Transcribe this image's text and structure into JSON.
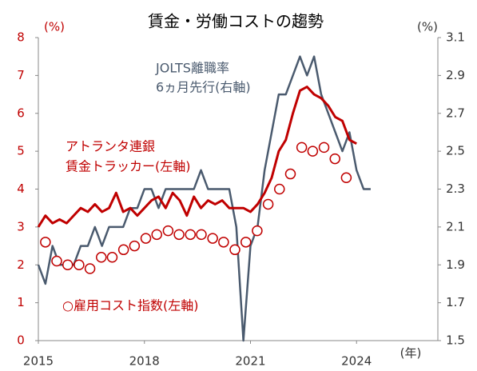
{
  "chart_data": {
    "type": "line",
    "title": "賃金・労働コストの趨勢",
    "y_unit": "(%)",
    "y2_unit": "(%)",
    "x_unit": "(年)",
    "annotations": [
      {
        "text": "JOLTS離職率",
        "color": "#4a5a6e"
      },
      {
        "text": "6ヵ月先行(右軸)",
        "color": "#4a5a6e"
      },
      {
        "text": "アトランタ連銀",
        "color": "#c00000"
      },
      {
        "text": "賃金トラッカー(左軸)",
        "color": "#c00000"
      },
      {
        "text": "○雇用コスト指数(左軸)",
        "color": "#c00000"
      }
    ],
    "xlim": [
      2015,
      2026.3
    ],
    "xticks": [
      2015,
      2018,
      2021,
      2024
    ],
    "ylim": [
      0,
      8
    ],
    "yticks": [
      0,
      1,
      2,
      3,
      4,
      5,
      6,
      7,
      8
    ],
    "y2lim": [
      1.5,
      3.1
    ],
    "y2ticks": [
      1.5,
      1.7,
      1.9,
      2.1,
      2.3,
      2.5,
      2.7,
      2.9,
      3.1
    ],
    "grid": false,
    "series": [
      {
        "color": "#c00000",
        "style": "line",
        "axis": "y",
        "x": [
          2015,
          2015.2,
          2015.4,
          2015.6,
          2015.8,
          2016,
          2016.2,
          2016.4,
          2016.6,
          2016.8,
          2017,
          2017.2,
          2017.4,
          2017.6,
          2017.8,
          2018,
          2018.2,
          2018.4,
          2018.6,
          2018.8,
          2019,
          2019.2,
          2019.4,
          2019.6,
          2019.8,
          2020,
          2020.2,
          2020.4,
          2020.6,
          2020.8,
          2021,
          2021.2,
          2021.4,
          2021.6,
          2021.8,
          2022,
          2022.2,
          2022.4,
          2022.6,
          2022.8,
          2023,
          2023.2,
          2023.4,
          2023.6,
          2023.8,
          2024
        ],
        "values": [
          3.0,
          3.3,
          3.1,
          3.2,
          3.1,
          3.3,
          3.5,
          3.4,
          3.6,
          3.4,
          3.5,
          3.9,
          3.4,
          3.5,
          3.3,
          3.5,
          3.7,
          3.8,
          3.5,
          3.9,
          3.7,
          3.3,
          3.8,
          3.5,
          3.7,
          3.6,
          3.7,
          3.5,
          3.5,
          3.5,
          3.4,
          3.6,
          3.9,
          4.3,
          5.0,
          5.3,
          6.0,
          6.6,
          6.7,
          6.5,
          6.4,
          6.2,
          5.9,
          5.8,
          5.3,
          5.2
        ]
      },
      {
        "color": "#4a5a6e",
        "style": "line",
        "axis": "y2",
        "x": [
          2015,
          2015.2,
          2015.4,
          2015.6,
          2015.8,
          2016,
          2016.2,
          2016.4,
          2016.6,
          2016.8,
          2017,
          2017.2,
          2017.4,
          2017.6,
          2017.8,
          2018,
          2018.2,
          2018.4,
          2018.6,
          2018.8,
          2019,
          2019.2,
          2019.4,
          2019.6,
          2019.8,
          2020,
          2020.2,
          2020.4,
          2020.6,
          2020.8,
          2021,
          2021.2,
          2021.4,
          2021.6,
          2021.8,
          2022,
          2022.2,
          2022.4,
          2022.6,
          2022.8,
          2023,
          2023.2,
          2023.4,
          2023.6,
          2023.8,
          2024,
          2024.2,
          2024.4
        ],
        "values": [
          1.9,
          1.8,
          2.0,
          1.9,
          1.9,
          1.9,
          2.0,
          2.0,
          2.1,
          2.0,
          2.1,
          2.1,
          2.1,
          2.2,
          2.2,
          2.3,
          2.3,
          2.2,
          2.3,
          2.3,
          2.3,
          2.3,
          2.3,
          2.4,
          2.3,
          2.3,
          2.3,
          2.3,
          2.1,
          1.5,
          2.0,
          2.1,
          2.4,
          2.6,
          2.8,
          2.8,
          2.9,
          3.0,
          2.9,
          3.0,
          2.8,
          2.7,
          2.6,
          2.5,
          2.6,
          2.4,
          2.3,
          2.3
        ]
      },
      {
        "color": "#c00000",
        "style": "circles",
        "axis": "y",
        "x": [
          2015.2,
          2015.52,
          2015.83,
          2016.15,
          2016.46,
          2016.78,
          2017.09,
          2017.41,
          2017.72,
          2018.04,
          2018.35,
          2018.67,
          2018.98,
          2019.3,
          2019.61,
          2019.93,
          2020.24,
          2020.56,
          2020.87,
          2021.19,
          2021.5,
          2021.82,
          2022.13,
          2022.45,
          2022.76,
          2023.08,
          2023.39,
          2023.71
        ],
        "values": [
          2.6,
          2.1,
          2.0,
          2.0,
          1.9,
          2.2,
          2.2,
          2.4,
          2.5,
          2.7,
          2.8,
          2.9,
          2.8,
          2.8,
          2.8,
          2.7,
          2.6,
          2.4,
          2.6,
          2.9,
          3.6,
          4.0,
          4.4,
          5.1,
          5.0,
          5.1,
          4.8,
          4.3
        ]
      }
    ]
  }
}
